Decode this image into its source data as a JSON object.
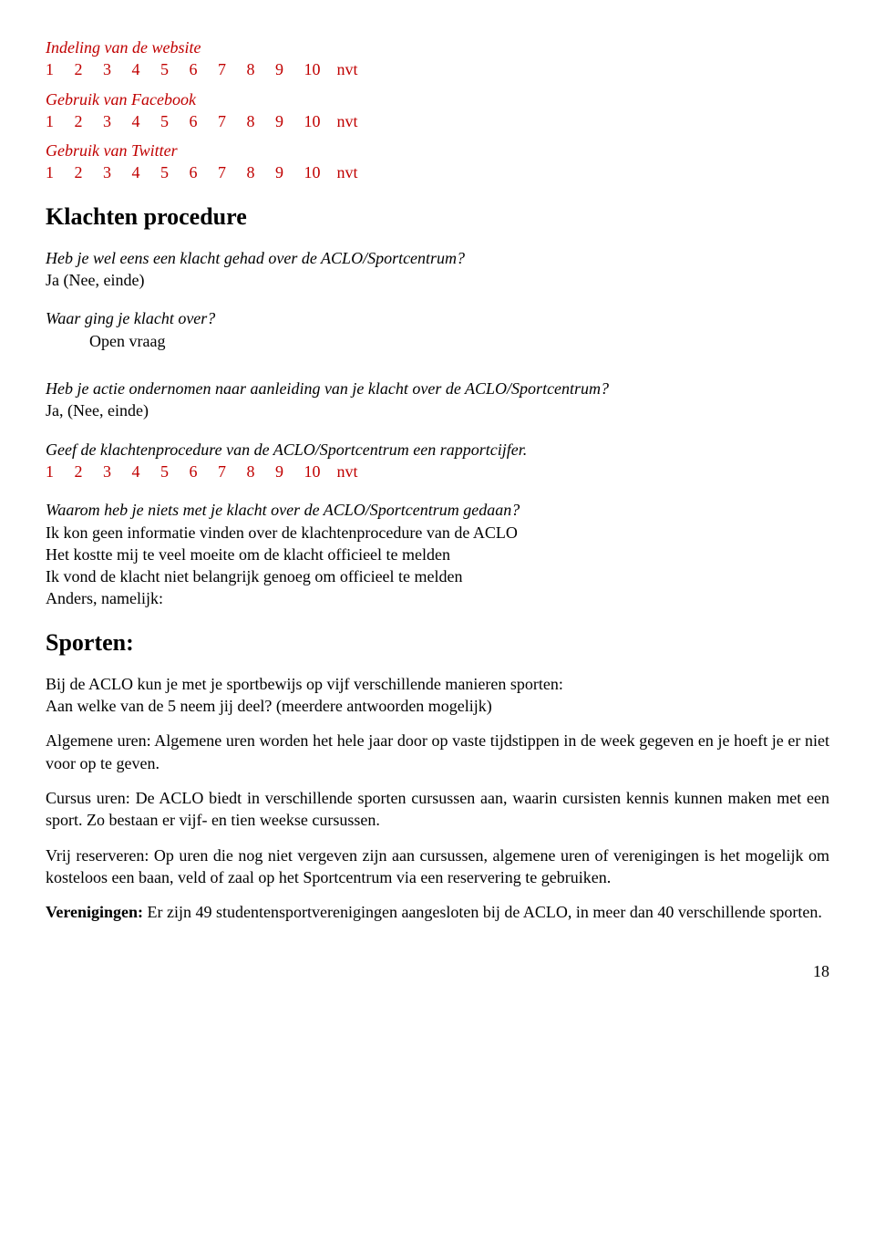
{
  "scale_row": "1     2     3     4     5     6     7     8     9     10    nvt",
  "q1": {
    "title": "Indeling van de website"
  },
  "q2": {
    "title": "Gebruik van Facebook"
  },
  "q3": {
    "title": "Gebruik van Twitter"
  },
  "section1": {
    "heading": "Klachten procedure"
  },
  "q4": {
    "title": "Heb je wel eens een klacht gehad over de ACLO/Sportcentrum?",
    "answer": "Ja (Nee, einde)"
  },
  "q5": {
    "title": "Waar ging je klacht over?",
    "answer": "Open vraag"
  },
  "q6": {
    "title": "Heb je actie ondernomen naar aanleiding van je klacht over de ACLO/Sportcentrum?",
    "answer": "Ja, (Nee, einde)"
  },
  "q7": {
    "title": "Geef  de klachtenprocedure van de ACLO/Sportcentrum een rapportcijfer."
  },
  "q8": {
    "title": "Waarom heb je niets met je klacht over de ACLO/Sportcentrum gedaan?",
    "opt1": "Ik kon geen informatie vinden over de klachtenprocedure van de ACLO",
    "opt2": "Het kostte mij te veel moeite om de klacht officieel te melden",
    "opt3": "Ik vond de klacht niet belangrijk genoeg om officieel te melden",
    "opt4": "Anders, namelijk:"
  },
  "section2": {
    "heading": "Sporten:"
  },
  "intro1": "Bij de ACLO kun je met je sportbewijs op vijf verschillende manieren sporten:",
  "intro2": "Aan welke van de 5 neem jij deel? (meerdere antwoorden mogelijk)",
  "p1": "Algemene uren: Algemene uren worden het hele jaar door op vaste tijdstippen in de week gegeven en je hoeft je er niet voor op te geven.",
  "p2": "Cursus uren: De ACLO biedt in verschillende sporten cursussen aan, waarin cursisten kennis kunnen maken met een sport. Zo bestaan er vijf- en tien weekse cursussen.",
  "p3": "Vrij reserveren: Op uren die nog niet vergeven zijn aan cursussen, algemene uren of verenigingen is het mogelijk om kosteloos een baan, veld of zaal op het Sportcentrum via een reservering te gebruiken.",
  "p4": {
    "label": "Verenigingen:",
    "rest": " Er zijn 49 studentensportverenigingen aangesloten bij de ACLO, in meer dan 40 verschillende sporten."
  },
  "page": "18",
  "colors": {
    "accent": "#c00000",
    "text": "#000000",
    "background": "#ffffff"
  },
  "typography": {
    "body_fontsize_pt": 14,
    "heading_fontsize_pt": 20,
    "font_family": "serif"
  }
}
